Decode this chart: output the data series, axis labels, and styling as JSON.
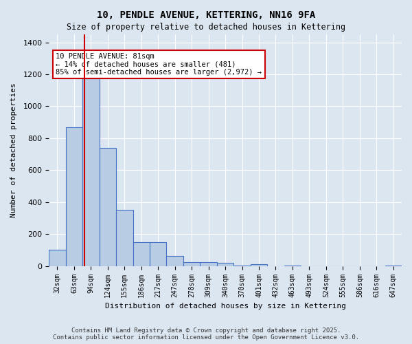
{
  "title1": "10, PENDLE AVENUE, KETTERING, NN16 9FA",
  "title2": "Size of property relative to detached houses in Kettering",
  "xlabel": "Distribution of detached houses by size in Kettering",
  "ylabel": "Number of detached properties",
  "categories": [
    "32sqm",
    "63sqm",
    "94sqm",
    "124sqm",
    "155sqm",
    "186sqm",
    "217sqm",
    "247sqm",
    "278sqm",
    "309sqm",
    "340sqm",
    "370sqm",
    "401sqm",
    "432sqm",
    "463sqm",
    "493sqm",
    "524sqm",
    "555sqm",
    "586sqm",
    "616sqm",
    "647sqm"
  ],
  "values": [
    100,
    870,
    1175,
    740,
    350,
    150,
    150,
    65,
    25,
    25,
    20,
    5,
    10,
    0,
    5,
    0,
    0,
    0,
    0,
    0,
    5
  ],
  "bar_color": "#b8cce4",
  "bar_edge_color": "#4472c4",
  "background_color": "#dce6f1",
  "plot_bg_color": "#dce6f1",
  "grid_color": "#ffffff",
  "red_line_x": 1.6,
  "annotation_text": "10 PENDLE AVENUE: 81sqm\n← 14% of detached houses are smaller (481)\n85% of semi-detached houses are larger (2,972) →",
  "annotation_box_color": "#ffffff",
  "annotation_box_edge": "#cc0000",
  "red_line_color": "#cc0000",
  "ylim": [
    0,
    1450
  ],
  "footer": "Contains HM Land Registry data © Crown copyright and database right 2025.\nContains public sector information licensed under the Open Government Licence v3.0."
}
